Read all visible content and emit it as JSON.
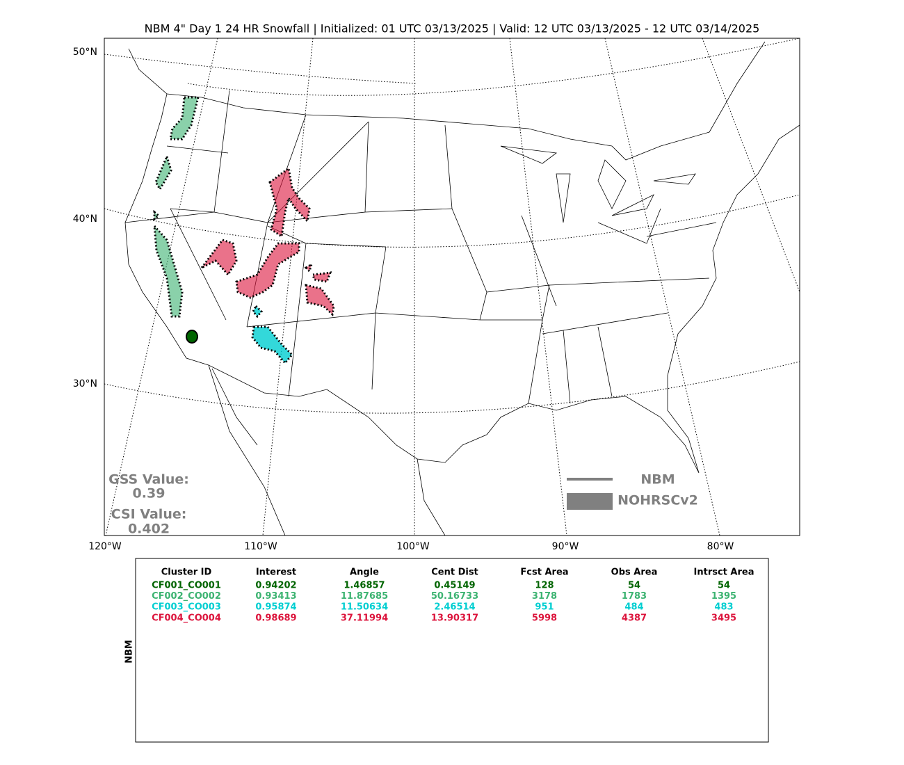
{
  "title": "NBM 4\" Day 1 24 HR Snowfall | Initialized: 01 UTC 03/13/2025 | Valid: 12 UTC 03/13/2025 - 12 UTC 03/14/2025",
  "map": {
    "lat_labels": [
      "50°N",
      "40°N",
      "30°N"
    ],
    "lon_labels": [
      "120°W",
      "110°W",
      "100°W",
      "90°W",
      "80°W"
    ],
    "gss_label": "GSS Value:",
    "gss_value": "0.39",
    "csi_label": "CSI Value:",
    "csi_value": "0.402",
    "legend": [
      "NBM",
      "NOHRSCv2"
    ]
  },
  "table": {
    "side_label": "NBM",
    "columns": [
      "Cluster ID",
      "Interest",
      "Angle",
      "Cent Dist",
      "Fcst Area",
      "Obs Area",
      "Intrsct Area"
    ],
    "row_colors": [
      "#006400",
      "#3cb371",
      "#00ced1",
      "#dc143c"
    ],
    "rows": [
      [
        "CF001_CO001",
        "0.94202",
        "1.46857",
        "0.45149",
        "128",
        "54",
        "54"
      ],
      [
        "CF002_CO002",
        "0.93413",
        "11.87685",
        "50.16733",
        "3178",
        "1783",
        "1395"
      ],
      [
        "CF003_CO003",
        "0.95874",
        "11.50634",
        "2.46514",
        "951",
        "484",
        "483"
      ],
      [
        "CF004_CO004",
        "0.98689",
        "37.11994",
        "13.90317",
        "5998",
        "4387",
        "3495"
      ]
    ]
  }
}
